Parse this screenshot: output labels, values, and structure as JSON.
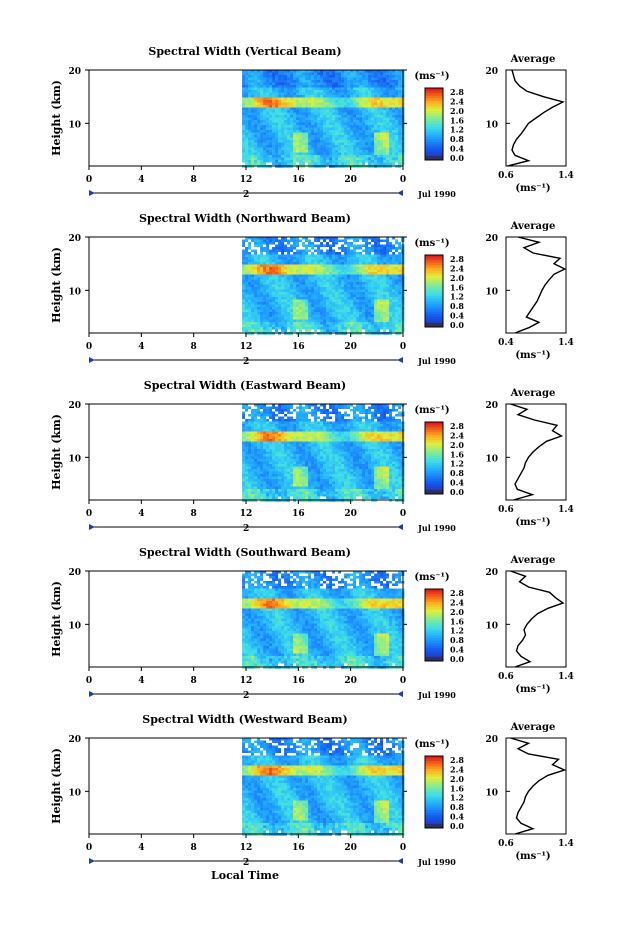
{
  "figure": {
    "xlabel": "Local Time",
    "date_label": "Jul 1990",
    "ylabel": "Height (km)",
    "unit_label": "(ms⁻¹)",
    "average_title": "Average",
    "average_xlabel": "(ms⁻¹)"
  },
  "chart_data": [
    {
      "type": "heatmap",
      "title": "Spectral Width (Vertical Beam)",
      "xlabel": "Local Time",
      "ylabel": "Height (km)",
      "x_ticks": [
        "0",
        "4",
        "8",
        "12",
        "16",
        "20",
        "0"
      ],
      "x_range_hours": [
        0,
        24
      ],
      "data_start_hour": 11.7,
      "y_ticks": [
        "20",
        "10"
      ],
      "ylim_km": [
        2,
        20
      ],
      "colorbar": {
        "label": "(ms⁻¹)",
        "ticks": [
          "2.8",
          "2.4",
          "2.0",
          "1.6",
          "1.2",
          "0.8",
          "0.4",
          "0.0"
        ],
        "range": [
          0.0,
          2.8
        ]
      },
      "date_axis": {
        "tick": "2",
        "label": "Jul 1990"
      },
      "average_profile": {
        "title": "Average",
        "xlabel": "(ms⁻¹)",
        "x_ticks": [
          "0.6",
          "1.4"
        ],
        "xlim": [
          0.6,
          1.4
        ],
        "height_km": [
          2,
          3,
          4,
          5,
          6,
          7,
          8,
          9,
          10,
          11,
          12,
          13,
          14,
          15,
          16,
          17,
          18,
          19,
          20
        ],
        "width": [
          0.62,
          0.9,
          0.72,
          0.68,
          0.7,
          0.74,
          0.8,
          0.85,
          0.9,
          1.0,
          1.1,
          1.22,
          1.36,
          1.1,
          0.88,
          0.78,
          0.72,
          0.7,
          0.68
        ]
      }
    },
    {
      "type": "heatmap",
      "title": "Spectral Width (Northward Beam)",
      "xlabel": "Local Time",
      "ylabel": "Height (km)",
      "x_ticks": [
        "0",
        "4",
        "8",
        "12",
        "16",
        "20",
        "0"
      ],
      "x_range_hours": [
        0,
        24
      ],
      "data_start_hour": 11.7,
      "y_ticks": [
        "20",
        "10"
      ],
      "ylim_km": [
        2,
        20
      ],
      "colorbar": {
        "label": "(ms⁻¹)",
        "ticks": [
          "2.8",
          "2.4",
          "2.0",
          "1.6",
          "1.2",
          "0.8",
          "0.4",
          "0.0"
        ],
        "range": [
          0.0,
          2.8
        ]
      },
      "date_axis": {
        "tick": "2",
        "label": "Jul 1990"
      },
      "average_profile": {
        "title": "Average",
        "xlabel": "(ms⁻¹)",
        "x_ticks": [
          "0.4",
          "1.4"
        ],
        "xlim": [
          0.4,
          1.4
        ],
        "height_km": [
          2,
          3,
          4,
          5,
          6,
          7,
          8,
          9,
          10,
          11,
          12,
          13,
          14,
          15,
          16,
          17,
          18,
          19,
          20
        ],
        "width": [
          0.55,
          0.78,
          0.95,
          0.74,
          0.8,
          0.86,
          0.92,
          0.96,
          1.0,
          1.05,
          1.12,
          1.2,
          1.38,
          1.2,
          1.3,
          0.85,
          0.7,
          0.95,
          0.6
        ]
      }
    },
    {
      "type": "heatmap",
      "title": "Spectral Width (Eastward Beam)",
      "xlabel": "Local Time",
      "ylabel": "Height (km)",
      "x_ticks": [
        "0",
        "4",
        "8",
        "12",
        "16",
        "20",
        "0"
      ],
      "x_range_hours": [
        0,
        24
      ],
      "data_start_hour": 11.7,
      "y_ticks": [
        "20",
        "10"
      ],
      "ylim_km": [
        2,
        20
      ],
      "colorbar": {
        "label": "(ms⁻¹)",
        "ticks": [
          "2.8",
          "2.4",
          "2.0",
          "1.6",
          "1.2",
          "0.8",
          "0.4",
          "0.0"
        ],
        "range": [
          0.0,
          2.8
        ]
      },
      "date_axis": {
        "tick": "2",
        "label": "Jul 1990"
      },
      "average_profile": {
        "title": "Average",
        "xlabel": "(ms⁻¹)",
        "x_ticks": [
          "0.6",
          "1.4"
        ],
        "xlim": [
          0.6,
          1.4
        ],
        "height_km": [
          2,
          3,
          4,
          5,
          6,
          7,
          8,
          9,
          10,
          11,
          12,
          13,
          14,
          15,
          16,
          17,
          18,
          19,
          20
        ],
        "width": [
          0.7,
          0.95,
          0.75,
          0.72,
          0.76,
          0.8,
          0.84,
          0.86,
          0.9,
          0.96,
          1.04,
          1.14,
          1.34,
          1.22,
          1.28,
          0.98,
          0.76,
          0.88,
          0.66
        ]
      }
    },
    {
      "type": "heatmap",
      "title": "Spectral Width (Southward Beam)",
      "xlabel": "Local Time",
      "ylabel": "Height (km)",
      "x_ticks": [
        "0",
        "4",
        "8",
        "12",
        "16",
        "20",
        "0"
      ],
      "x_range_hours": [
        0,
        24
      ],
      "data_start_hour": 11.7,
      "y_ticks": [
        "20",
        "10"
      ],
      "ylim_km": [
        2,
        20
      ],
      "colorbar": {
        "label": "(ms⁻¹)",
        "ticks": [
          "2.8",
          "2.4",
          "2.0",
          "1.6",
          "1.2",
          "0.8",
          "0.4",
          "0.0"
        ],
        "range": [
          0.0,
          2.8
        ]
      },
      "date_axis": {
        "tick": "2",
        "label": "Jul 1990"
      },
      "average_profile": {
        "title": "Average",
        "xlabel": "(ms⁻¹)",
        "x_ticks": [
          "0.6",
          "1.4"
        ],
        "xlim": [
          0.6,
          1.4
        ],
        "height_km": [
          2,
          3,
          4,
          5,
          6,
          7,
          8,
          9,
          10,
          11,
          12,
          13,
          14,
          15,
          16,
          17,
          18,
          19,
          20
        ],
        "width": [
          0.72,
          0.92,
          0.8,
          0.74,
          0.76,
          0.82,
          0.86,
          0.84,
          0.88,
          0.94,
          1.02,
          1.16,
          1.36,
          1.26,
          1.18,
          0.9,
          0.78,
          0.86,
          0.66
        ]
      }
    },
    {
      "type": "heatmap",
      "title": "Spectral Width (Westward Beam)",
      "xlabel": "Local Time",
      "ylabel": "Height (km)",
      "x_ticks": [
        "0",
        "4",
        "8",
        "12",
        "16",
        "20",
        "0"
      ],
      "x_range_hours": [
        0,
        24
      ],
      "data_start_hour": 11.7,
      "y_ticks": [
        "20",
        "10"
      ],
      "ylim_km": [
        2,
        20
      ],
      "colorbar": {
        "label": "(ms⁻¹)",
        "ticks": [
          "2.8",
          "2.4",
          "2.0",
          "1.6",
          "1.2",
          "0.8",
          "0.4",
          "0.0"
        ],
        "range": [
          0.0,
          2.8
        ]
      },
      "date_axis": {
        "tick": "2",
        "label": "Jul 1990"
      },
      "average_profile": {
        "title": "Average",
        "xlabel": "(ms⁻¹)",
        "x_ticks": [
          "0.6",
          "1.4"
        ],
        "xlim": [
          0.6,
          1.4
        ],
        "height_km": [
          2,
          3,
          4,
          5,
          6,
          7,
          8,
          9,
          10,
          11,
          12,
          13,
          14,
          15,
          16,
          17,
          18,
          19,
          20
        ],
        "width": [
          0.72,
          0.96,
          0.8,
          0.74,
          0.76,
          0.8,
          0.84,
          0.86,
          0.9,
          0.96,
          1.04,
          1.16,
          1.38,
          1.22,
          1.3,
          0.9,
          0.76,
          0.9,
          0.66
        ]
      }
    }
  ]
}
